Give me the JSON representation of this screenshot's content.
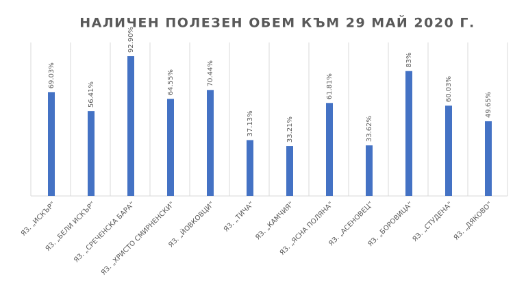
{
  "chart_data": {
    "type": "bar",
    "title": "НАЛИЧЕН ПОЛЕЗЕН ОБЕМ КЪМ 29 МАЙ 2020 Г.",
    "categories": [
      "ЯЗ. „ИСКЪР“",
      "ЯЗ. „БЕЛИ ИСКЪР“",
      "ЯЗ. „СРЕЧЕНСКА БАРА“",
      "ЯЗ. „ХРИСТО СМИРНЕНСКИ“",
      "ЯЗ. „ЙОВКОВЦИ“",
      "ЯЗ. „ТИЧА“",
      "ЯЗ. „КАМЧИЯ“",
      "ЯЗ. „ЯСНА ПОЛЯНА“",
      "ЯЗ. „АСЕНОВЕЦ“",
      "ЯЗ. „БОРОВИЦА“",
      "ЯЗ. „СТУДЕНА“",
      "ЯЗ. „ДЯКОВО“"
    ],
    "values": [
      69.03,
      56.41,
      92.9,
      64.55,
      70.44,
      37.13,
      33.21,
      61.81,
      33.62,
      83,
      60.03,
      49.65
    ],
    "value_labels": [
      "69.03%",
      "56.41%",
      "92.90%",
      "64.55%",
      "70.44%",
      "37.13%",
      "33.21%",
      "61.81%",
      "33.62%",
      "83%",
      "60.03%",
      "49.65%"
    ],
    "color": "#4472c4"
  }
}
